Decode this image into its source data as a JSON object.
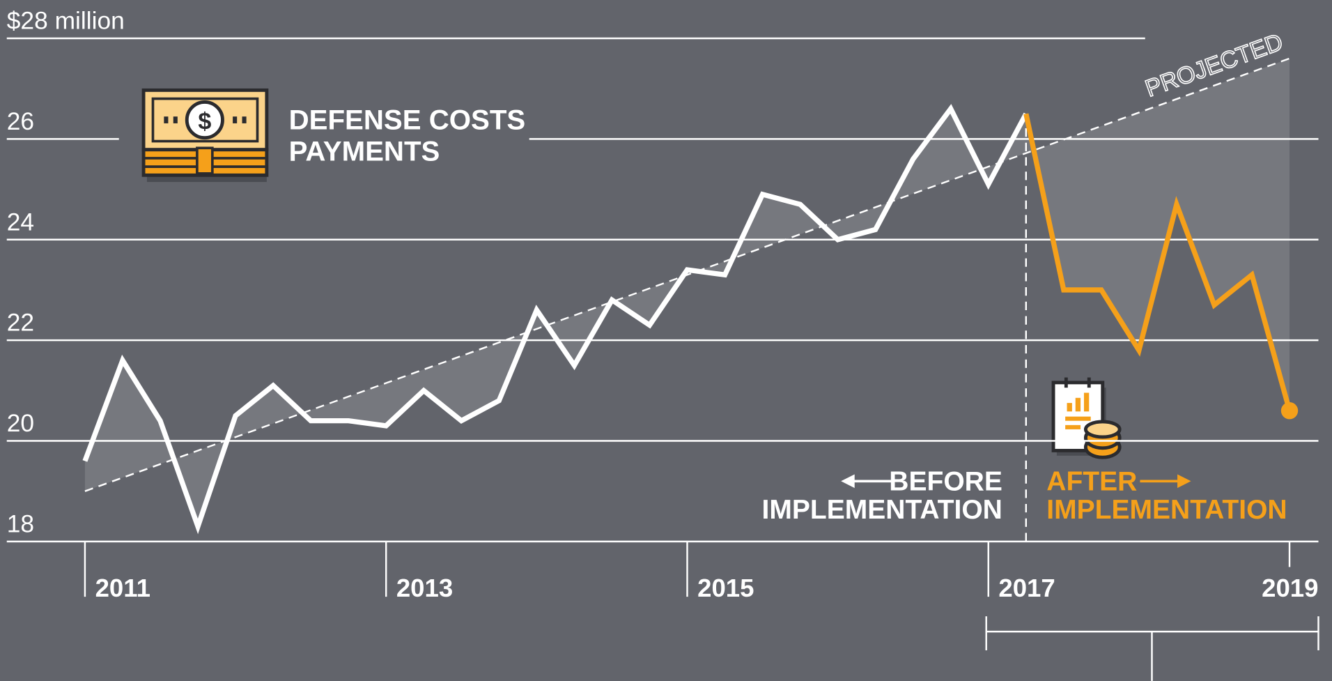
{
  "chart_data": {
    "type": "line",
    "title": [
      "DEFENSE COSTS",
      "PAYMENTS"
    ],
    "x": [
      2011,
      2011.25,
      2011.5,
      2011.75,
      2012,
      2012.25,
      2012.5,
      2012.75,
      2013,
      2013.25,
      2013.5,
      2013.75,
      2014,
      2014.25,
      2014.5,
      2014.75,
      2015,
      2015.25,
      2015.5,
      2015.75,
      2016,
      2016.25,
      2016.5,
      2016.75,
      2017,
      2017.25,
      2017.5,
      2017.75,
      2018,
      2018.25,
      2018.5,
      2018.75,
      2019
    ],
    "series": [
      {
        "color": "#ffffff",
        "values": [
          19.6,
          21.6,
          20.4,
          18.3,
          20.5,
          21.1,
          20.4,
          20.4,
          20.3,
          21.0,
          20.4,
          20.8,
          22.6,
          21.5,
          22.8,
          22.3,
          23.4,
          23.3,
          24.9,
          24.7,
          24.0,
          24.2,
          25.6,
          26.6,
          25.1,
          26.5,
          null,
          null,
          null,
          null,
          null,
          null,
          null
        ]
      },
      {
        "color": "#f5a01a",
        "values": [
          null,
          null,
          null,
          null,
          null,
          null,
          null,
          null,
          null,
          null,
          null,
          null,
          null,
          null,
          null,
          null,
          null,
          null,
          null,
          null,
          null,
          null,
          null,
          null,
          null,
          26.5,
          23.0,
          23.0,
          21.8,
          24.7,
          22.7,
          23.3,
          20.6
        ]
      }
    ],
    "trend": {
      "label": "PROJECTED",
      "x": [
        2011,
        2019
      ],
      "values": [
        19.0,
        27.6
      ]
    },
    "divider_x": 2017.25,
    "annotations": {
      "before": [
        "BEFORE",
        "IMPLEMENTATION"
      ],
      "after": [
        "AFTER",
        "IMPLEMENTATION"
      ]
    },
    "xlim": [
      2011,
      2019
    ],
    "xticks": [
      2011,
      2013,
      2015,
      2017,
      2019
    ],
    "ylim": [
      18,
      28
    ],
    "yticks": [
      18,
      20,
      22,
      24,
      26,
      {
        "value": 28,
        "label": "$28 million"
      }
    ],
    "grid": true
  }
}
